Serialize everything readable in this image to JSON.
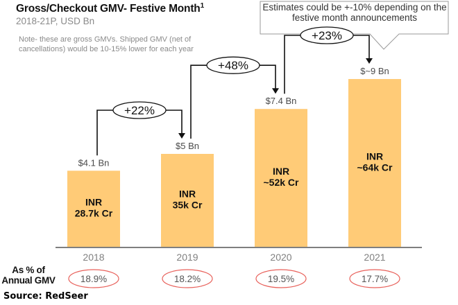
{
  "title": "Gross/Checkout GMV- Festive Month",
  "title_superscript": "1",
  "subtitle": "2018-21P, USD Bn",
  "note": "Note- these are gross GMVs. Shipped GMV (net of cancellations) would be 10-15% lower for each year",
  "callout": "Estimates could be +-10% depending on the festive month announcements",
  "pct_row_label": "As % of Annual GMV",
  "source": "Source: RedSeer",
  "colors": {
    "bar": "#FFCB77",
    "axis": "#7f7f7f",
    "ellipse_red": "#E8605A",
    "connector": "#111111"
  },
  "chart_data": {
    "type": "bar",
    "title": "Gross/Checkout GMV- Festive Month",
    "subtitle": "2018-21P, USD Bn",
    "xlabel": "",
    "ylabel": "USD Bn",
    "ylim": [
      0,
      9.5
    ],
    "grid": false,
    "categories": [
      "2018",
      "2019",
      "2020",
      "2021"
    ],
    "values": [
      4.1,
      5.0,
      7.4,
      9.0
    ],
    "usd_labels": [
      "$4.1 Bn",
      "$5 Bn",
      "$7.4 Bn",
      "$~9 Bn"
    ],
    "inr_labels": [
      [
        "INR",
        "28.7k Cr"
      ],
      [
        "INR",
        "35k Cr"
      ],
      [
        "INR",
        "~52k Cr"
      ],
      [
        "INR",
        "~64k Cr"
      ]
    ],
    "growth": [
      {
        "from": "2018",
        "to": "2019",
        "label": "+22%"
      },
      {
        "from": "2019",
        "to": "2020",
        "label": "+48%"
      },
      {
        "from": "2020",
        "to": "2021",
        "label": "+23%"
      }
    ],
    "pct_of_annual_gmv": [
      "18.9%",
      "18.2%",
      "19.5%",
      "17.7%"
    ]
  }
}
